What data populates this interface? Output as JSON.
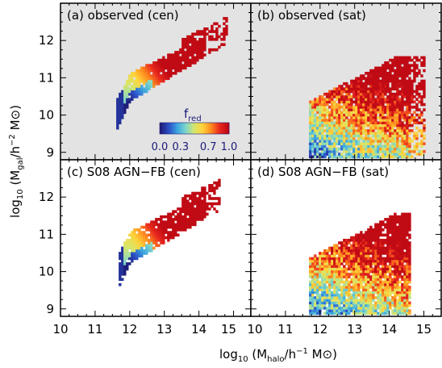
{
  "chart_data": {
    "type": "heatmap",
    "panels": [
      {
        "label": "(a) observed (cen)",
        "background": "#e3e3e3",
        "shape": "cen",
        "model": "obs"
      },
      {
        "label": "(b) observed (sat)",
        "background": "#e3e3e3",
        "shape": "sat",
        "model": "obs"
      },
      {
        "label": "(c) S08 AGN−FB (cen)",
        "background": "#ffffff",
        "shape": "cen",
        "model": "sim"
      },
      {
        "label": "(d) S08 AGN−FB (sat)",
        "background": "#ffffff",
        "shape": "sat",
        "model": "sim"
      }
    ],
    "xlim": [
      10,
      15.5
    ],
    "ylim": [
      8.8,
      13.0
    ],
    "x_ticks": [
      "10",
      "11",
      "12",
      "13",
      "14",
      "15"
    ],
    "x_ticks_right": [
      "10",
      "11",
      "12",
      "13",
      "14",
      "15"
    ],
    "y_ticks": [
      "9",
      "10",
      "11",
      "12"
    ],
    "x_title": {
      "pre": "log",
      "sub1": "10",
      "mid": " (M",
      "sub2": "halo",
      "post": "/h",
      "sup": "−1",
      "end": " M⊙)"
    },
    "y_title": {
      "pre": "log",
      "sub1": "10",
      "mid": " (M",
      "sub2": "gal",
      "post": "/h",
      "sup": "−2",
      "end": " M⊙)"
    },
    "colorbar": {
      "title": "f",
      "title_sub": "red",
      "ticks": [
        "0.0",
        "0.3",
        "0.7",
        "1.0"
      ],
      "range": [
        0,
        1
      ],
      "colormap": [
        "#1f1f7a",
        "#2b52c9",
        "#3da8e0",
        "#7fd6c8",
        "#d8e66a",
        "#ffd23a",
        "#ff8a1e",
        "#e8281e",
        "#c00a14"
      ]
    },
    "value": "red fraction f_red as a function of halo mass and galaxy stellar mass"
  }
}
